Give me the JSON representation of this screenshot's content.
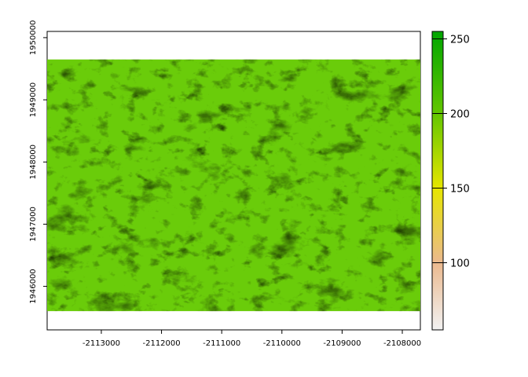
{
  "chart_data": {
    "type": "heatmap",
    "title": "",
    "xlabel": "",
    "ylabel": "",
    "xlim": [
      -2113900,
      -2107700
    ],
    "ylim": [
      1945300,
      1950100
    ],
    "raster_extent": {
      "x": [
        -2113900,
        -2107700
      ],
      "y": [
        1945600,
        1949650
      ]
    },
    "x_ticks": [
      -2113000,
      -2112000,
      -2111000,
      -2110000,
      -2109000,
      -2108000
    ],
    "x_tick_labels": [
      "-2113000",
      "-2112000",
      "-2111000",
      "-2110000",
      "-2109000",
      "-2108000"
    ],
    "y_ticks": [
      1946000,
      1947000,
      1948000,
      1949000,
      1950000
    ],
    "y_tick_labels": [
      "1946000",
      "1947000",
      "1948000",
      "1949000",
      "1950000"
    ],
    "value_range": [
      55,
      255
    ],
    "legend": {
      "position": "right",
      "ticks": [
        100,
        150,
        200,
        250
      ],
      "tick_labels": [
        "100",
        "150",
        "200",
        "250"
      ],
      "color_stops": [
        {
          "value": 55,
          "color": "#F2F2F2"
        },
        {
          "value": 100,
          "color": "#EBB98E"
        },
        {
          "value": 150,
          "color": "#E6E600"
        },
        {
          "value": 200,
          "color": "#63C600"
        },
        {
          "value": 255,
          "color": "#00A600"
        }
      ]
    },
    "grid": false
  }
}
